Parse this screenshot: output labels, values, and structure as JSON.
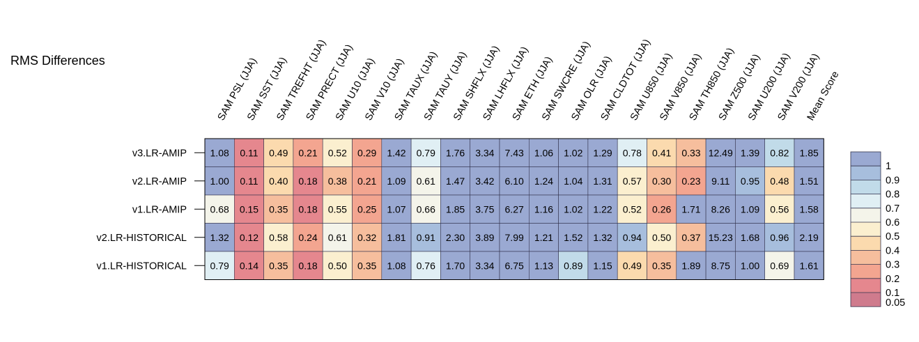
{
  "chart_data": {
    "type": "heatmap",
    "title": "RMS Differences",
    "columns": [
      "SAM PSL (JJA)",
      "SAM SST (JJA)",
      "SAM TREFHT (JJA)",
      "SAM PRECT (JJA)",
      "SAM U10 (JJA)",
      "SAM V10 (JJA)",
      "SAM TAUX (JJA)",
      "SAM TAUY (JJA)",
      "SAM SHFLX (JJA)",
      "SAM LHFLX (JJA)",
      "SAM ETH (JJA)",
      "SAM SWCRE (JJA)",
      "SAM OLR (JJA)",
      "SAM CLDTOT (JJA)",
      "SAM U850 (JJA)",
      "SAM V850 (JJA)",
      "SAM TH850 (JJA)",
      "SAM Z500 (JJA)",
      "SAM U200 (JJA)",
      "SAM V200 (JJA)",
      "Mean Score"
    ],
    "rows": [
      "v3.LR-AMIP",
      "v2.LR-AMIP",
      "v1.LR-AMIP",
      "v2.LR-HISTORICAL",
      "v1.LR-HISTORICAL"
    ],
    "values": [
      [
        "1.08",
        "0.11",
        "0.49",
        "0.21",
        "0.52",
        "0.29",
        "1.42",
        "0.79",
        "1.76",
        "3.34",
        "7.43",
        "1.06",
        "1.02",
        "1.29",
        "0.78",
        "0.41",
        "0.33",
        "12.49",
        "1.39",
        "0.82",
        "1.85"
      ],
      [
        "1.00",
        "0.11",
        "0.40",
        "0.18",
        "0.38",
        "0.21",
        "1.09",
        "0.61",
        "1.47",
        "3.42",
        "6.10",
        "1.24",
        "1.04",
        "1.31",
        "0.57",
        "0.30",
        "0.23",
        "9.11",
        "0.95",
        "0.48",
        "1.51"
      ],
      [
        "0.68",
        "0.15",
        "0.35",
        "0.18",
        "0.55",
        "0.25",
        "1.07",
        "0.66",
        "1.85",
        "3.75",
        "6.27",
        "1.16",
        "1.02",
        "1.22",
        "0.52",
        "0.26",
        "1.71",
        "8.26",
        "1.09",
        "0.56",
        "1.58"
      ],
      [
        "1.32",
        "0.12",
        "0.58",
        "0.24",
        "0.61",
        "0.32",
        "1.81",
        "0.91",
        "2.30",
        "3.89",
        "7.99",
        "1.21",
        "1.52",
        "1.32",
        "0.94",
        "0.50",
        "0.37",
        "15.23",
        "1.68",
        "0.96",
        "2.19"
      ],
      [
        "0.79",
        "0.14",
        "0.35",
        "0.18",
        "0.50",
        "0.35",
        "1.08",
        "0.76",
        "1.70",
        "3.34",
        "6.75",
        "1.13",
        "0.89",
        "1.15",
        "0.49",
        "0.35",
        "1.89",
        "8.75",
        "1.00",
        "0.69",
        "1.61"
      ]
    ],
    "colorbar": {
      "ticks": [
        "1",
        "0.9",
        "0.8",
        "0.7",
        "0.6",
        "0.5",
        "0.4",
        "0.3",
        "0.2",
        "0.1",
        "0.05"
      ],
      "colors": [
        "#9aa9d2",
        "#a7bedd",
        "#c1dbe9",
        "#e0eff4",
        "#f4f4ea",
        "#fbefcf",
        "#fbdaae",
        "#f6be9d",
        "#f3a590",
        "#e5878e",
        "#cf7b8d"
      ]
    }
  }
}
